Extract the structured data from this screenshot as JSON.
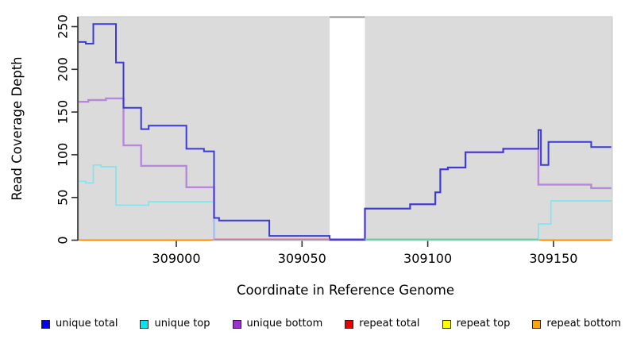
{
  "axes": {
    "x_label": "Coordinate in Reference Genome",
    "y_label": "Read Coverage Depth",
    "x_tick_labels": [
      "309000",
      "309050",
      "309100",
      "309150"
    ],
    "y_tick_labels": [
      "0",
      "50",
      "100",
      "150",
      "200",
      "250"
    ]
  },
  "legend": [
    {
      "label": "unique total",
      "color": "#0000EE"
    },
    {
      "label": "unique top",
      "color": "#00E5EE"
    },
    {
      "label": "unique bottom",
      "color": "#9A32CD"
    },
    {
      "label": "repeat total",
      "color": "#E60000"
    },
    {
      "label": "repeat top",
      "color": "#FFFF00"
    },
    {
      "label": "repeat bottom",
      "color": "#FFA500"
    }
  ],
  "chart_data": {
    "type": "line",
    "title": "",
    "xlabel": "Coordinate in Reference Genome",
    "ylabel": "Read Coverage Depth",
    "xlim": [
      308961,
      309173
    ],
    "ylim": [
      0,
      261
    ],
    "x_ticks": [
      309000,
      309050,
      309100,
      309150
    ],
    "y_ticks": [
      0,
      50,
      100,
      150,
      200,
      250
    ],
    "grid": false,
    "legend_position": "bottom",
    "panel_background": "#DBDBDB",
    "panel_border": "#C8C8C8",
    "gap_region": {
      "x_start": 309061,
      "x_end": 309075,
      "top_bar_color": "#909090"
    },
    "series": [
      {
        "name": "unique total",
        "line_color": "#3A3AD6",
        "line_width": 2,
        "steps": [
          [
            308961,
            232
          ],
          [
            308964,
            230
          ],
          [
            308967,
            253
          ],
          [
            308976,
            208
          ],
          [
            308979,
            155
          ],
          [
            308986,
            130
          ],
          [
            308989,
            134
          ],
          [
            309004,
            107
          ],
          [
            309011,
            104
          ],
          [
            309015,
            26
          ],
          [
            309017,
            23
          ],
          [
            309037,
            5
          ],
          [
            309061,
            0
          ],
          [
            309075,
            37
          ],
          [
            309093,
            42
          ],
          [
            309103,
            56
          ],
          [
            309105,
            83
          ],
          [
            309108,
            85
          ],
          [
            309115,
            103
          ],
          [
            309130,
            107
          ],
          [
            309144,
            129
          ],
          [
            309145,
            88
          ],
          [
            309148,
            115
          ],
          [
            309165,
            109
          ],
          [
            309173,
            109
          ]
        ]
      },
      {
        "name": "unique top",
        "line_color": "#82E4EE",
        "line_width": 1.7,
        "steps": [
          [
            308961,
            69
          ],
          [
            308964,
            67
          ],
          [
            308967,
            88
          ],
          [
            308970,
            86
          ],
          [
            308976,
            41
          ],
          [
            308989,
            45
          ],
          [
            309015,
            0
          ],
          [
            309144,
            19
          ],
          [
            309149,
            46
          ],
          [
            309173,
            46
          ]
        ]
      },
      {
        "name": "unique bottom",
        "line_color": "#B788DA",
        "line_width": 2.4,
        "steps": [
          [
            308961,
            162
          ],
          [
            308965,
            164
          ],
          [
            308972,
            166
          ],
          [
            308979,
            111
          ],
          [
            308986,
            87
          ],
          [
            309004,
            62
          ],
          [
            309015,
            0
          ],
          [
            309075,
            37
          ],
          [
            309093,
            42
          ],
          [
            309103,
            56
          ],
          [
            309105,
            83
          ],
          [
            309108,
            85
          ],
          [
            309115,
            103
          ],
          [
            309130,
            107
          ],
          [
            309144,
            65
          ],
          [
            309165,
            61
          ],
          [
            309173,
            61
          ]
        ]
      },
      {
        "name": "repeat total",
        "line_color": "#D63A56",
        "line_width": 2,
        "steps": [
          [
            308961,
            0
          ],
          [
            309173,
            0
          ]
        ]
      },
      {
        "name": "repeat top",
        "line_color": "#FFFF00",
        "line_width": 2,
        "steps": [
          [
            308961,
            0
          ],
          [
            309173,
            0
          ]
        ]
      },
      {
        "name": "repeat bottom",
        "line_color": "#FF8C00",
        "line_width": 2,
        "steps": [
          [
            308961,
            0
          ],
          [
            309173,
            0
          ]
        ]
      }
    ],
    "baseline_overlap_segments": [
      {
        "x1": 309015,
        "x2": 309061,
        "color": "#E0708E"
      },
      {
        "x1": 309061,
        "x2": 309075,
        "color": "#4B3BD0"
      },
      {
        "x1": 309075,
        "x2": 309144,
        "color": "#7CC98B"
      }
    ]
  }
}
